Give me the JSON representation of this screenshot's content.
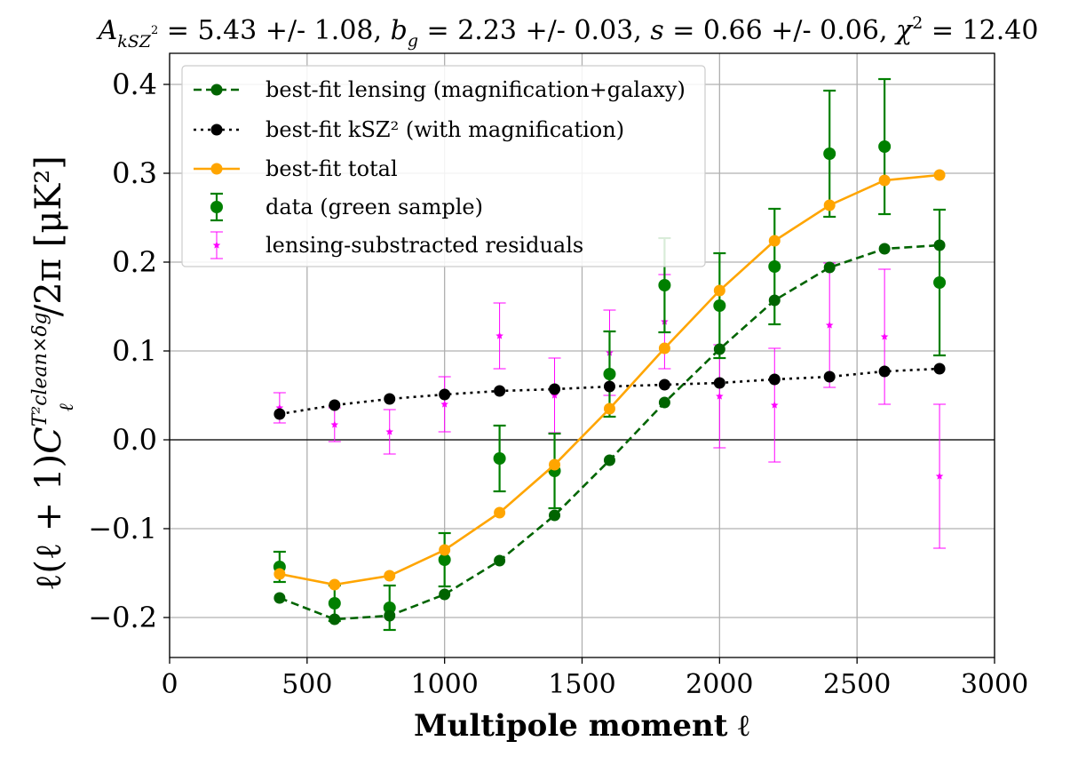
{
  "chart_data": {
    "type": "line",
    "title": {
      "a_name": "A",
      "a_sub": "kSZ",
      "a_sup": "2",
      "a_value": " = 5.43 +/- 1.08, ",
      "bg_name": "b",
      "bg_sub": "g",
      "bg_value": " = 2.23 +/- 0.03, ",
      "s_name": "s",
      "s_value": " = 0.66 +/- 0.06, ",
      "chi_name": "χ",
      "chi_sup": "2",
      "chi_value": " = 12.40"
    },
    "xlabel": "Multipole moment ℓ",
    "ylabel": {
      "prefix": "ℓ(ℓ + 1)",
      "C": "C",
      "sub": "ℓ",
      "sup": "T²clean×δg",
      "suffix": "/2π [μK²]"
    },
    "xlim": [
      0,
      3000
    ],
    "ylim": [
      -0.245,
      0.435
    ],
    "xticks": [
      0,
      500,
      1000,
      1500,
      2000,
      2500,
      3000
    ],
    "xtick_labels": [
      "0",
      "500",
      "1000",
      "1500",
      "2000",
      "2500",
      "3000"
    ],
    "yticks": [
      -0.2,
      -0.1,
      0.0,
      0.1,
      0.2,
      0.3,
      0.4
    ],
    "ytick_labels": [
      "−0.2",
      "−0.1",
      "0.0",
      "0.1",
      "0.2",
      "0.3",
      "0.4"
    ],
    "grid": true,
    "hline": 0,
    "legend_position": "upper-left",
    "x": [
      400,
      600,
      800,
      1000,
      1200,
      1400,
      1600,
      1800,
      2000,
      2200,
      2400,
      2600,
      2800
    ],
    "series": [
      {
        "name": "best-fit lensing (magnification+galaxy)",
        "style": "dashed-line-markers",
        "color": "#006400",
        "values": [
          -0.178,
          -0.202,
          -0.198,
          -0.174,
          -0.136,
          -0.085,
          -0.023,
          0.042,
          0.102,
          0.157,
          0.194,
          0.215,
          0.219
        ]
      },
      {
        "name": "best-fit kSZ² (with magnification)",
        "style": "dotted-line-markers",
        "color": "#000000",
        "values": [
          0.029,
          0.039,
          0.046,
          0.051,
          0.055,
          0.057,
          0.06,
          0.062,
          0.064,
          0.068,
          0.071,
          0.077,
          0.08
        ]
      },
      {
        "name": "best-fit total",
        "style": "solid-line-markers",
        "color": "#ffa500",
        "values": [
          -0.151,
          -0.163,
          -0.153,
          -0.124,
          -0.082,
          -0.028,
          0.035,
          0.103,
          0.168,
          0.224,
          0.264,
          0.292,
          0.298
        ]
      },
      {
        "name": "data (green sample)",
        "style": "errorbar",
        "color": "#008000",
        "x": [
          400,
          600,
          800,
          1000,
          1200,
          1400,
          1600,
          1800,
          2000,
          2200,
          2400,
          2600,
          2800
        ],
        "values": [
          -0.143,
          -0.184,
          -0.189,
          -0.135,
          -0.021,
          -0.035,
          0.074,
          0.174,
          0.151,
          0.195,
          0.322,
          0.33,
          0.177
        ],
        "errors": [
          0.017,
          0.02,
          0.025,
          0.03,
          0.037,
          0.042,
          0.048,
          0.053,
          0.059,
          0.065,
          0.071,
          0.076,
          0.082
        ]
      },
      {
        "name": "lensing-substracted residuals",
        "style": "errorbar-star",
        "color": "#ff00ff",
        "x": [
          400,
          600,
          800,
          1000,
          1200,
          1400,
          1600,
          1800,
          2000,
          2200,
          2400,
          2600,
          2800
        ],
        "values": [
          0.036,
          0.017,
          0.009,
          0.04,
          0.117,
          0.05,
          0.098,
          0.133,
          0.049,
          0.039,
          0.129,
          0.116,
          -0.041
        ],
        "errors": [
          0.017,
          0.019,
          0.025,
          0.031,
          0.037,
          0.042,
          0.048,
          0.053,
          0.058,
          0.064,
          0.07,
          0.076,
          0.081
        ]
      }
    ]
  }
}
